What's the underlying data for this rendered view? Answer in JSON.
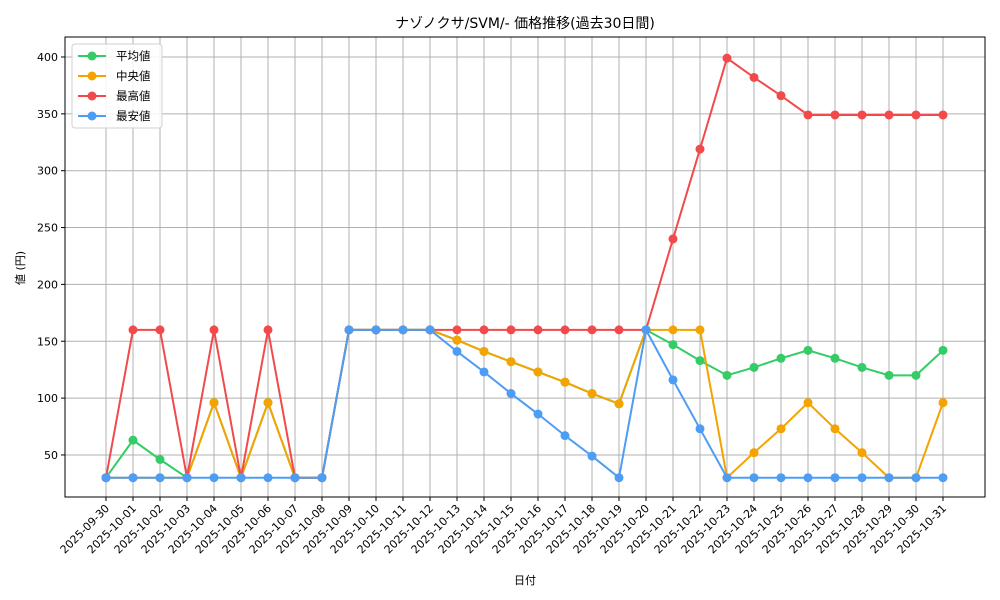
{
  "chart_data": {
    "type": "line",
    "title": "ナゾノクサ/SVM/- 価格推移(過去30日間)",
    "xlabel": "日付",
    "ylabel": "値 (円)",
    "ylim": [
      12,
      418
    ],
    "yticks": [
      50,
      100,
      150,
      200,
      250,
      300,
      350,
      400
    ],
    "grid": true,
    "legend_position": "upper left",
    "categories": [
      "2025-09-30",
      "2025-10-01",
      "2025-10-02",
      "2025-10-03",
      "2025-10-04",
      "2025-10-05",
      "2025-10-06",
      "2025-10-07",
      "2025-10-08",
      "2025-10-09",
      "2025-10-10",
      "2025-10-11",
      "2025-10-12",
      "2025-10-13",
      "2025-10-14",
      "2025-10-15",
      "2025-10-16",
      "2025-10-17",
      "2025-10-18",
      "2025-10-19",
      "2025-10-20",
      "2025-10-21",
      "2025-10-22",
      "2025-10-23",
      "2025-10-24",
      "2025-10-25",
      "2025-10-26",
      "2025-10-27",
      "2025-10-28",
      "2025-10-29",
      "2025-10-30",
      "2025-10-31"
    ],
    "series": [
      {
        "name": "平均値",
        "color": "#33cc66",
        "values": [
          30,
          63,
          46,
          30,
          96,
          30,
          96,
          30,
          30,
          160,
          160,
          160,
          160,
          151,
          141,
          132,
          123,
          114,
          104,
          95,
          160,
          147,
          133,
          120,
          127,
          135,
          142,
          135,
          127,
          120,
          120,
          142
        ]
      },
      {
        "name": "中央値",
        "color": "#f5a300",
        "values": [
          30,
          30,
          30,
          30,
          96,
          30,
          96,
          30,
          30,
          160,
          160,
          160,
          160,
          151,
          141,
          132,
          123,
          114,
          104,
          95,
          160,
          160,
          160,
          30,
          52,
          73,
          96,
          73,
          52,
          30,
          30,
          96
        ]
      },
      {
        "name": "最高値",
        "color": "#f24a4a",
        "values": [
          30,
          160,
          160,
          30,
          160,
          30,
          160,
          30,
          30,
          160,
          160,
          160,
          160,
          160,
          160,
          160,
          160,
          160,
          160,
          160,
          160,
          240,
          319,
          399,
          382,
          366,
          349,
          349,
          349,
          349,
          349,
          349
        ]
      },
      {
        "name": "最安値",
        "color": "#4d9df5",
        "values": [
          30,
          30,
          30,
          30,
          30,
          30,
          30,
          30,
          30,
          160,
          160,
          160,
          160,
          141,
          123,
          104,
          86,
          67,
          49,
          30,
          160,
          116,
          73,
          30,
          30,
          30,
          30,
          30,
          30,
          30,
          30,
          30
        ]
      }
    ]
  }
}
